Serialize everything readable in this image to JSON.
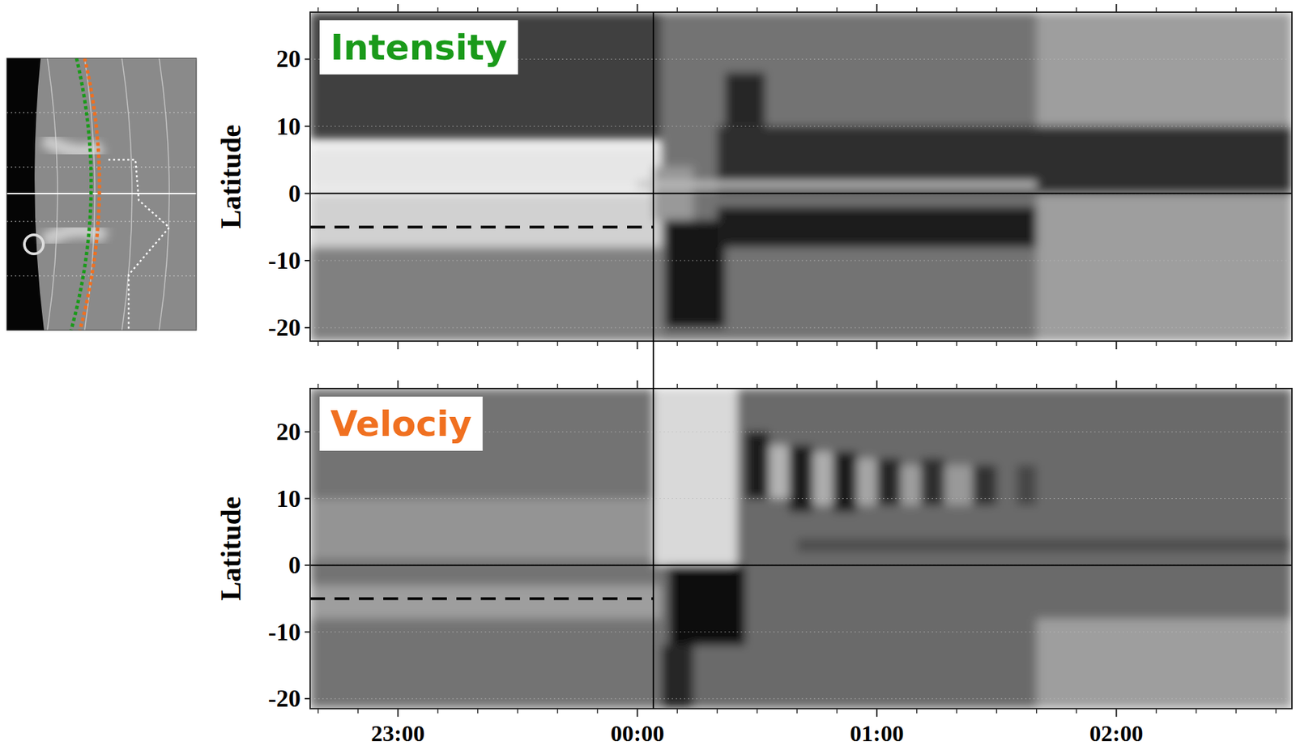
{
  "chart_data": [
    {
      "type": "heatmap",
      "title": "Intensity",
      "color": "#1a9a1a",
      "y_label": "Latitude",
      "xlim": [
        -82,
        164
      ],
      "xticks": [
        {
          "value": -60,
          "label": "23:00"
        },
        {
          "value": 0,
          "label": "00:00"
        },
        {
          "value": 60,
          "label": "01:00"
        },
        {
          "value": 120,
          "label": "02:00"
        }
      ],
      "x_minor_ticks": [
        -80,
        -70,
        -50,
        -40,
        -30,
        -20,
        -10,
        10,
        20,
        30,
        40,
        50,
        70,
        80,
        90,
        100,
        110,
        130,
        140,
        150,
        160
      ],
      "tick_labels": "y",
      "ylim": [
        -22,
        27
      ],
      "yticks": [
        -20,
        -10,
        0,
        10,
        20
      ],
      "grid": true,
      "features": [
        {
          "t": [
            -82,
            6
          ],
          "lat": [
            8,
            27
          ],
          "level": 0.25
        },
        {
          "t": [
            -82,
            6
          ],
          "lat": [
            0.5,
            7
          ],
          "level": 0.9
        },
        {
          "t": [
            -82,
            6
          ],
          "lat": [
            -8,
            0
          ],
          "level": 0.82
        },
        {
          "t": [
            -82,
            6
          ],
          "lat": [
            -22,
            -8
          ],
          "level": 0.5
        },
        {
          "t": [
            6,
            164
          ],
          "lat": [
            -22,
            27
          ],
          "level": 0.45
        },
        {
          "t": [
            100,
            164
          ],
          "lat": [
            -22,
            27
          ],
          "level": 0.62
        },
        {
          "t": [
            4,
            14
          ],
          "lat": [
            -4,
            4
          ],
          "level": 0.6
        },
        {
          "t": [
            7,
            22
          ],
          "lat": [
            -20,
            -4
          ],
          "level": 0.08
        },
        {
          "t": [
            20,
            164
          ],
          "lat": [
            0,
            10
          ],
          "level": 0.18
        },
        {
          "t": [
            22,
            32
          ],
          "lat": [
            10,
            18
          ],
          "level": 0.15
        },
        {
          "t": [
            20,
            100
          ],
          "lat": [
            -8,
            -2
          ],
          "level": 0.1
        },
        {
          "t": [
            0,
            100
          ],
          "lat": [
            0.8,
            1.8
          ],
          "level": 0.75
        }
      ],
      "reference_lines": [
        {
          "axis": "y",
          "value": 0,
          "line_style": "solid"
        },
        {
          "axis": "y",
          "value": -5,
          "x_end": 4,
          "line_style": "dashed"
        },
        {
          "axis": "x",
          "value": 4,
          "line_style": "solid"
        }
      ]
    },
    {
      "type": "heatmap",
      "title": "Velociy",
      "color": "#f07020",
      "y_label": "Latitude",
      "xlim": [
        -82,
        164
      ],
      "xticks": [
        {
          "value": -60,
          "label": "23:00"
        },
        {
          "value": 0,
          "label": "00:00"
        },
        {
          "value": 60,
          "label": "01:00"
        },
        {
          "value": 120,
          "label": "02:00"
        }
      ],
      "x_minor_ticks": [
        -80,
        -70,
        -50,
        -40,
        -30,
        -20,
        -10,
        10,
        20,
        30,
        40,
        50,
        70,
        80,
        90,
        100,
        110,
        130,
        140,
        150,
        160
      ],
      "ylim": [
        -21.5,
        26.5
      ],
      "yticks": [
        -20,
        -10,
        0,
        10,
        20
      ],
      "grid": true,
      "features": [
        {
          "t": [
            -82,
            6
          ],
          "lat": [
            -21.5,
            26.5
          ],
          "level": 0.45
        },
        {
          "t": [
            -82,
            6
          ],
          "lat": [
            1,
            10
          ],
          "level": 0.58
        },
        {
          "t": [
            -82,
            6
          ],
          "lat": [
            -8,
            -3
          ],
          "level": 0.62
        },
        {
          "t": [
            6,
            164
          ],
          "lat": [
            -21.5,
            26.5
          ],
          "level": 0.42
        },
        {
          "t": [
            100,
            164
          ],
          "lat": [
            -21.5,
            -8
          ],
          "level": 0.62
        },
        {
          "t": [
            40,
            164
          ],
          "lat": [
            2,
            4
          ],
          "level": 0.3
        },
        {
          "t": [
            4,
            25
          ],
          "lat": [
            0,
            26.5
          ],
          "level": 0.85
        },
        {
          "t": [
            8,
            27
          ],
          "lat": [
            -12,
            0
          ],
          "level": 0.05
        },
        {
          "t": [
            6,
            14
          ],
          "lat": [
            -21.5,
            -12
          ],
          "level": 0.15
        },
        {
          "t": [
            27,
            33
          ],
          "lat": [
            10,
            20
          ],
          "level": 0.1
        },
        {
          "t": [
            33,
            38
          ],
          "lat": [
            10,
            18
          ],
          "level": 0.7
        },
        {
          "t": [
            38,
            44
          ],
          "lat": [
            8,
            18
          ],
          "level": 0.12
        },
        {
          "t": [
            44,
            49
          ],
          "lat": [
            9,
            17
          ],
          "level": 0.68
        },
        {
          "t": [
            49,
            55
          ],
          "lat": [
            8,
            17
          ],
          "level": 0.12
        },
        {
          "t": [
            55,
            60
          ],
          "lat": [
            9,
            16
          ],
          "level": 0.65
        },
        {
          "t": [
            60,
            66
          ],
          "lat": [
            9,
            16
          ],
          "level": 0.15
        },
        {
          "t": [
            66,
            71
          ],
          "lat": [
            9,
            15
          ],
          "level": 0.62
        },
        {
          "t": [
            71,
            77
          ],
          "lat": [
            9,
            16
          ],
          "level": 0.18
        },
        {
          "t": [
            77,
            84
          ],
          "lat": [
            9,
            15
          ],
          "level": 0.6
        },
        {
          "t": [
            84,
            90
          ],
          "lat": [
            9,
            15
          ],
          "level": 0.2
        },
        {
          "t": [
            95,
            100
          ],
          "lat": [
            9,
            15
          ],
          "level": 0.28
        }
      ],
      "reference_lines": [
        {
          "axis": "y",
          "value": 0,
          "line_style": "solid"
        },
        {
          "axis": "y",
          "value": -5,
          "x_end": 4,
          "line_style": "dashed"
        },
        {
          "axis": "x",
          "value": 4,
          "line_style": "solid"
        }
      ]
    }
  ]
}
